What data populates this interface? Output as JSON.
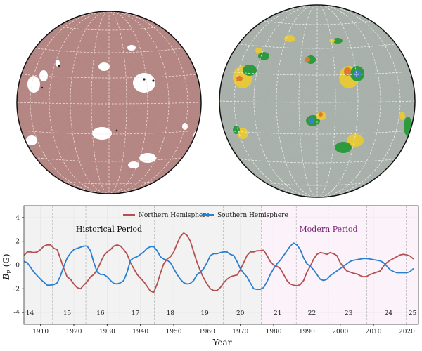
{
  "colors": {
    "north": "#b5504f",
    "south": "#2a7fcf",
    "historical_bg": "#f2f2f2",
    "modern_bg": "#fbf3f9",
    "modern_label": "#7a1f7a",
    "disk_left": "#b07f7c",
    "disk_right": "#a4aca6"
  },
  "chart_data": {
    "type": "line",
    "xlabel": "Year",
    "ylabel_main": "B",
    "ylabel_sub": "P",
    "ylabel_unit": "(G)",
    "xlim": [
      1905,
      2023.5
    ],
    "ylim": [
      -5,
      5
    ],
    "xticks": [
      1910,
      1920,
      1930,
      1940,
      1950,
      1960,
      1970,
      1980,
      1990,
      2000,
      2010,
      2020
    ],
    "yticks": [
      -4,
      -2,
      0,
      2,
      4
    ],
    "grid": true,
    "legend_position": "top-center",
    "annotations": {
      "historical": "Historical Period",
      "modern": "Modern Period"
    },
    "modern_start": 1976.3,
    "cycle_boundaries": [
      1913.6,
      1923.6,
      1933.8,
      1944.2,
      1954.3,
      1964.9,
      1976.3,
      1986.8,
      1996.4,
      2008.0,
      2019.8
    ],
    "cycles": [
      {
        "label": "14",
        "x": 1906.8
      },
      {
        "label": "15",
        "x": 1918
      },
      {
        "label": "16",
        "x": 1928
      },
      {
        "label": "17",
        "x": 1938.5
      },
      {
        "label": "18",
        "x": 1949
      },
      {
        "label": "19",
        "x": 1959.3
      },
      {
        "label": "20",
        "x": 1970
      },
      {
        "label": "21",
        "x": 1981.2
      },
      {
        "label": "22",
        "x": 1991.5
      },
      {
        "label": "23",
        "x": 2002.5
      },
      {
        "label": "24",
        "x": 2014.5
      },
      {
        "label": "25",
        "x": 2021.7
      }
    ],
    "x_start": 1905,
    "series": [
      {
        "name": "Northern Hemisphere",
        "color": "#b5504f",
        "values": [
          0.8,
          1.1,
          1.1,
          1.05,
          1.1,
          1.3,
          1.6,
          1.7,
          1.7,
          1.4,
          1.3,
          0.5,
          -0.3,
          -1.0,
          -1.2,
          -1.6,
          -1.9,
          -2.0,
          -1.7,
          -1.4,
          -1.0,
          -0.8,
          -0.4,
          0.2,
          0.8,
          1.1,
          1.3,
          1.6,
          1.7,
          1.6,
          1.3,
          0.9,
          0.2,
          -0.3,
          -0.8,
          -1.1,
          -1.4,
          -1.8,
          -2.2,
          -2.3,
          -1.6,
          -0.7,
          0.1,
          0.5,
          0.7,
          1.1,
          1.8,
          2.4,
          2.7,
          2.5,
          2.0,
          1.1,
          0.2,
          -0.5,
          -1.1,
          -1.6,
          -2.0,
          -2.15,
          -2.15,
          -1.9,
          -1.5,
          -1.2,
          -1.0,
          -0.9,
          -0.85,
          -0.4,
          0.2,
          0.8,
          1.1,
          1.1,
          1.2,
          1.2,
          1.25,
          0.8,
          0.3,
          0.0,
          -0.1,
          -0.3,
          -0.8,
          -1.3,
          -1.6,
          -1.7,
          -1.75,
          -1.65,
          -1.3,
          -0.6,
          -0.1,
          0.5,
          0.9,
          1.05,
          1.0,
          0.9,
          1.05,
          0.95,
          0.8,
          0.2,
          -0.2,
          -0.5,
          -0.6,
          -0.7,
          -0.75,
          -0.9,
          -1.0,
          -0.95,
          -0.8,
          -0.7,
          -0.6,
          -0.5,
          -0.1,
          0.2,
          0.4,
          0.55,
          0.7,
          0.85,
          0.9,
          0.85,
          0.75,
          0.5
        ]
      },
      {
        "name": "Southern Hemisphere",
        "color": "#2a7fcf",
        "values": [
          0.3,
          0.2,
          -0.2,
          -0.6,
          -0.9,
          -1.2,
          -1.45,
          -1.7,
          -1.7,
          -1.65,
          -1.5,
          -0.9,
          -0.1,
          0.6,
          1.0,
          1.3,
          1.4,
          1.5,
          1.6,
          1.6,
          1.2,
          0.2,
          -0.6,
          -0.8,
          -0.8,
          -1.0,
          -1.3,
          -1.55,
          -1.6,
          -1.5,
          -1.3,
          -0.6,
          0.4,
          0.6,
          0.7,
          0.9,
          1.1,
          1.4,
          1.55,
          1.55,
          1.2,
          0.7,
          0.5,
          0.4,
          0.2,
          -0.3,
          -0.8,
          -1.2,
          -1.5,
          -1.6,
          -1.55,
          -1.3,
          -0.8,
          -0.6,
          -0.3,
          0.2,
          0.8,
          0.95,
          0.95,
          1.05,
          1.1,
          1.1,
          0.9,
          0.8,
          0.3,
          -0.3,
          -0.7,
          -1.0,
          -1.5,
          -2.0,
          -2.05,
          -2.05,
          -1.9,
          -1.4,
          -0.8,
          -0.3,
          0.1,
          0.4,
          0.8,
          1.2,
          1.6,
          1.85,
          1.7,
          1.3,
          0.6,
          0.1,
          -0.1,
          -0.4,
          -0.8,
          -1.2,
          -1.3,
          -1.2,
          -0.9,
          -0.7,
          -0.5,
          -0.3,
          -0.1,
          0.1,
          0.3,
          0.4,
          0.45,
          0.5,
          0.55,
          0.55,
          0.5,
          0.45,
          0.4,
          0.35,
          0.2,
          -0.1,
          -0.4,
          -0.55,
          -0.65,
          -0.65,
          -0.65,
          -0.65,
          -0.55,
          -0.3
        ]
      }
    ]
  }
}
